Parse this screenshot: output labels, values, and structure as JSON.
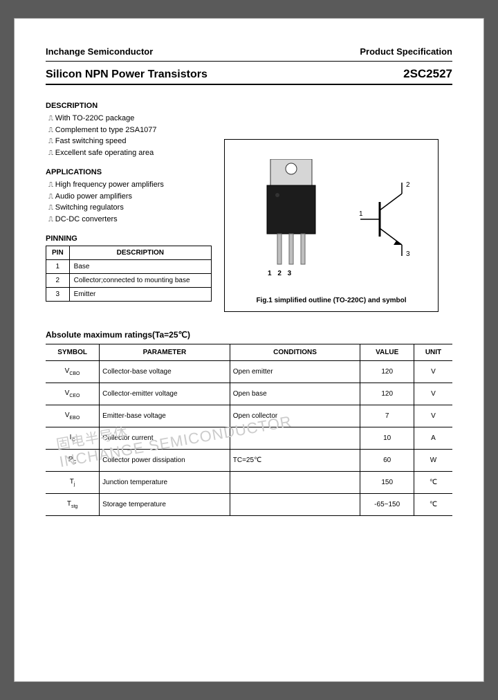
{
  "header": {
    "company": "Inchange Semiconductor",
    "doc_type": "Product Specification",
    "product_line": "Silicon NPN Power Transistors",
    "part_number": "2SC2527"
  },
  "description": {
    "heading": "DESCRIPTION",
    "items": [
      "With TO-220C package",
      "Complement to type 2SA1077",
      "Fast switching speed",
      "Excellent safe operating area"
    ]
  },
  "applications": {
    "heading": "APPLICATIONS",
    "items": [
      "High frequency power amplifiers",
      "Audio power amplifiers",
      "Switching regulators",
      "DC-DC converters"
    ]
  },
  "pinning": {
    "heading": "PINNING",
    "columns": [
      "PIN",
      "DESCRIPTION"
    ],
    "rows": [
      {
        "pin": "1",
        "desc": "Base"
      },
      {
        "pin": "2",
        "desc": "Collector;connected to mounting base"
      },
      {
        "pin": "3",
        "desc": "Emitter"
      }
    ]
  },
  "figure": {
    "caption": "Fig.1 simplified outline (TO-220C) and symbol",
    "pin_labels": "1 2 3",
    "symbol_pins": {
      "p1": "1",
      "p2": "2",
      "p3": "3"
    },
    "package": {
      "body_color": "#1c1c1c",
      "tab_color": "#d6d6d6",
      "lead_color": "#bfbfbf"
    }
  },
  "ratings": {
    "heading": "Absolute maximum ratings(Ta=25℃)",
    "columns": [
      "SYMBOL",
      "PARAMETER",
      "CONDITIONS",
      "VALUE",
      "UNIT"
    ],
    "rows": [
      {
        "symbol": "V",
        "sub": "CBO",
        "parameter": "Collector-base voltage",
        "conditions": "Open emitter",
        "value": "120",
        "unit": "V",
        "group_border": false
      },
      {
        "symbol": "V",
        "sub": "CEO",
        "parameter": "Collector-emitter voltage",
        "conditions": "Open base",
        "value": "120",
        "unit": "V",
        "group_border": false
      },
      {
        "symbol": "V",
        "sub": "EBO",
        "parameter": "Emitter-base voltage",
        "conditions": "Open collector",
        "value": "7",
        "unit": "V",
        "group_border": false
      },
      {
        "symbol": "I",
        "sub": "C",
        "parameter": "Collector current",
        "conditions": "",
        "value": "10",
        "unit": "A",
        "group_border": true
      },
      {
        "symbol": "P",
        "sub": "C",
        "parameter": "Collector power dissipation",
        "conditions": "TC=25℃",
        "value": "60",
        "unit": "W",
        "group_border": true
      },
      {
        "symbol": "T",
        "sub": "j",
        "parameter": "Junction temperature",
        "conditions": "",
        "value": "150",
        "unit": "℃",
        "group_border": true
      },
      {
        "symbol": "T",
        "sub": "stg",
        "parameter": "Storage temperature",
        "conditions": "",
        "value": "-65~150",
        "unit": "℃",
        "group_border": true
      }
    ]
  },
  "watermark": {
    "chinese": "固电半导体",
    "english": "INCHANGE SEMICONDUCTOR"
  }
}
